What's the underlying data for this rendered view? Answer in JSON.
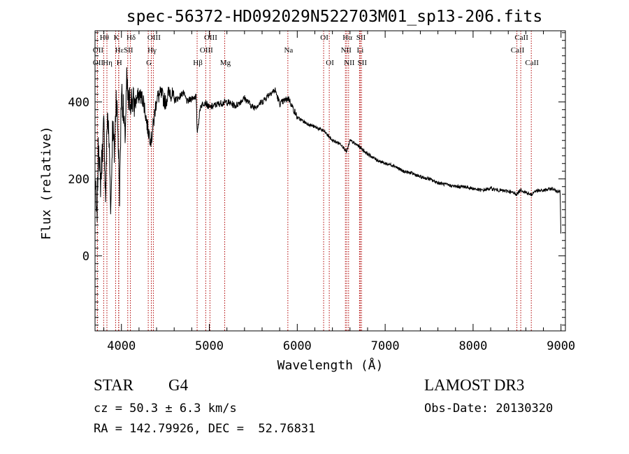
{
  "chart_data": {
    "type": "line",
    "title": "spec-56372-HD092029N522703M01_sp13-206.fits",
    "xlabel": "Wavelength (Å)",
    "ylabel": "Flux (relative)",
    "xlim": [
      3700,
      9050
    ],
    "ylim": [
      -195,
      585
    ],
    "xticks": [
      4000,
      5000,
      6000,
      7000,
      8000,
      9000
    ],
    "yticks": [
      0,
      200,
      400
    ],
    "grid": false,
    "series": [
      {
        "name": "flux",
        "x": [
          3700,
          3720,
          3740,
          3760,
          3780,
          3800,
          3820,
          3840,
          3860,
          3880,
          3900,
          3920,
          3940,
          3960,
          3980,
          4000,
          4020,
          4040,
          4060,
          4080,
          4100,
          4150,
          4200,
          4250,
          4300,
          4340,
          4400,
          4450,
          4500,
          4550,
          4600,
          4650,
          4700,
          4750,
          4800,
          4850,
          4861,
          4900,
          4950,
          5000,
          5100,
          5200,
          5300,
          5400,
          5500,
          5600,
          5700,
          5750,
          5800,
          5900,
          6000,
          6100,
          6200,
          6300,
          6400,
          6500,
          6563,
          6600,
          6700,
          6800,
          6900,
          7000,
          7100,
          7200,
          7300,
          7400,
          7500,
          7600,
          7700,
          7800,
          7900,
          8000,
          8100,
          8200,
          8300,
          8400,
          8498,
          8542,
          8600,
          8662,
          8700,
          8800,
          8900,
          8950,
          8990,
          9000
        ],
        "y": [
          210,
          80,
          310,
          180,
          260,
          340,
          150,
          380,
          290,
          120,
          350,
          260,
          420,
          330,
          160,
          440,
          380,
          300,
          450,
          390,
          410,
          395,
          420,
          405,
          330,
          300,
          410,
          420,
          400,
          430,
          405,
          410,
          425,
          400,
          410,
          415,
          320,
          390,
          400,
          385,
          395,
          400,
          390,
          410,
          385,
          400,
          425,
          430,
          395,
          410,
          360,
          345,
          335,
          325,
          300,
          290,
          270,
          300,
          285,
          265,
          250,
          240,
          235,
          220,
          215,
          205,
          200,
          190,
          185,
          180,
          180,
          175,
          170,
          175,
          170,
          168,
          160,
          172,
          165,
          158,
          168,
          170,
          175,
          168,
          170,
          30
        ]
      }
    ],
    "lines": [
      {
        "name": "Hθ",
        "x": 3798,
        "row": 1
      },
      {
        "name": "OII",
        "x": 3727,
        "row": 2
      },
      {
        "name": "OII",
        "x": 3727,
        "row": 3
      },
      {
        "name": "Hη",
        "x": 3835,
        "row": 3
      },
      {
        "name": "K",
        "x": 3934,
        "row": 1
      },
      {
        "name": "H",
        "x": 3968,
        "row": 3
      },
      {
        "name": "Hε",
        "x": 3970,
        "row": 2
      },
      {
        "name": "SII",
        "x": 4072,
        "row": 2
      },
      {
        "name": "Hδ",
        "x": 4102,
        "row": 1
      },
      {
        "name": "Hγ",
        "x": 4340,
        "row": 2
      },
      {
        "name": "G",
        "x": 4305,
        "row": 3
      },
      {
        "name": "OIII",
        "x": 4363,
        "row": 1
      },
      {
        "name": "Hβ",
        "x": 4861,
        "row": 3
      },
      {
        "name": "OIII",
        "x": 4959,
        "row": 2
      },
      {
        "name": "OIII",
        "x": 5007,
        "row": 1
      },
      {
        "name": "Mg",
        "x": 5175,
        "row": 3
      },
      {
        "name": "Na",
        "x": 5893,
        "row": 2
      },
      {
        "name": "OI",
        "x": 6300,
        "row": 1
      },
      {
        "name": "OI",
        "x": 6364,
        "row": 3
      },
      {
        "name": "NII",
        "x": 6548,
        "row": 2
      },
      {
        "name": "Hα",
        "x": 6563,
        "row": 1
      },
      {
        "name": "NII",
        "x": 6584,
        "row": 3
      },
      {
        "name": "Li",
        "x": 6708,
        "row": 2
      },
      {
        "name": "SII",
        "x": 6717,
        "row": 1
      },
      {
        "name": "SII",
        "x": 6731,
        "row": 3
      },
      {
        "name": "CaII",
        "x": 8498,
        "row": 2
      },
      {
        "name": "CaII",
        "x": 8542,
        "row": 1
      },
      {
        "name": "CaII",
        "x": 8662,
        "row": 3
      }
    ]
  },
  "info": {
    "object_class": "STAR",
    "subclass": "G4",
    "survey": "LAMOST DR3",
    "redshift": "cz = 50.3 ± 6.3 km/s",
    "obs_date": "Obs-Date: 20130320",
    "coords": "RA = 142.79926, DEC =  52.76831"
  },
  "colors": {
    "spectrum": "#000000",
    "lines": "#b00000",
    "axes": "#000000"
  }
}
